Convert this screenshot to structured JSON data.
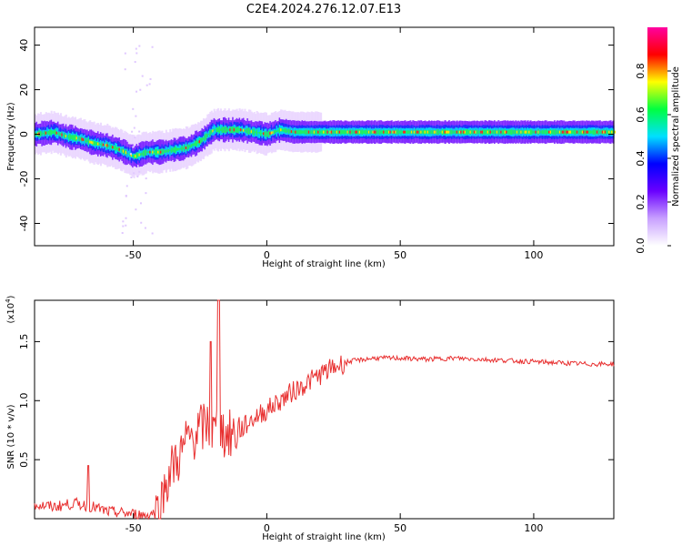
{
  "title": "C2E4.2024.276.12.07.E13",
  "chart_data": [
    {
      "type": "heatmap",
      "xlabel": "Height of straight line (km)",
      "ylabel": "Frequency (Hz)",
      "xlim": [
        -87,
        130
      ],
      "ylim": [
        -50,
        48
      ],
      "xticks": [
        "-50",
        "0",
        "50",
        "100"
      ],
      "yticks": [
        "40",
        "20",
        "0",
        "-20",
        "-40"
      ],
      "xtick_values": [
        -50,
        0,
        50,
        100
      ],
      "ytick_values": [
        40,
        20,
        0,
        -20,
        -40
      ],
      "ridge": {
        "x": [
          -87,
          -80,
          -75,
          -70,
          -65,
          -60,
          -55,
          -50,
          -45,
          -40,
          -35,
          -30,
          -25,
          -20,
          -15,
          -10,
          -5,
          0,
          5,
          10,
          20,
          30,
          50,
          70,
          100,
          130
        ],
        "freq": [
          0,
          1,
          -1,
          -2,
          -4,
          -5,
          -7,
          -10,
          -8,
          -8,
          -7,
          -6,
          -3,
          2,
          2,
          2,
          1,
          0,
          2,
          1,
          1,
          1,
          1,
          1,
          1,
          1
        ]
      },
      "colorbar": {
        "label": "Normalized spectral amplitude",
        "ticks": [
          "0.0",
          "0.2",
          "0.4",
          "0.6",
          "0.8"
        ],
        "tick_values": [
          0,
          0.2,
          0.4,
          0.6,
          0.8
        ],
        "range": [
          0,
          1
        ],
        "colors": [
          "#ffffff",
          "#c8a0ff",
          "#6a00ff",
          "#0000ff",
          "#00e0ff",
          "#00ff40",
          "#ffff00",
          "#ff0000",
          "#ff00a0"
        ]
      }
    },
    {
      "type": "line",
      "xlabel": "Height of straight line (km)",
      "ylabel": "SNR (10 * v/v)",
      "multiplier": "(x10",
      "multiplier_exp": "4",
      "xlim": [
        -87,
        130
      ],
      "ylim": [
        0,
        1.85
      ],
      "xticks": [
        "-50",
        "0",
        "50",
        "100"
      ],
      "yticks": [
        "1.5",
        "1.0",
        "0.5"
      ],
      "xtick_values": [
        -50,
        0,
        50,
        100
      ],
      "ytick_values": [
        1.5,
        1.0,
        0.5
      ],
      "color": "#e83030",
      "series": [
        {
          "x": [
            -87,
            -80,
            -72,
            -65,
            -60,
            -55,
            -50,
            -45,
            -40,
            -38,
            -35,
            -32,
            -30,
            -28,
            -25,
            -22,
            -20,
            -18,
            -15,
            -12,
            -10,
            -5,
            0,
            5,
            10,
            15,
            20,
            25,
            30,
            40,
            50,
            60,
            70,
            80,
            90,
            100,
            110,
            120,
            130
          ],
          "values": [
            0.12,
            0.1,
            0.13,
            0.1,
            0.06,
            0.05,
            0.04,
            0.03,
            0.07,
            0.3,
            0.45,
            0.55,
            0.65,
            0.7,
            0.75,
            0.8,
            0.72,
            0.78,
            0.7,
            0.72,
            0.75,
            0.85,
            0.92,
            1.0,
            1.08,
            1.15,
            1.22,
            1.28,
            1.33,
            1.36,
            1.36,
            1.35,
            1.36,
            1.35,
            1.34,
            1.33,
            1.32,
            1.31,
            1.31
          ]
        }
      ]
    }
  ]
}
